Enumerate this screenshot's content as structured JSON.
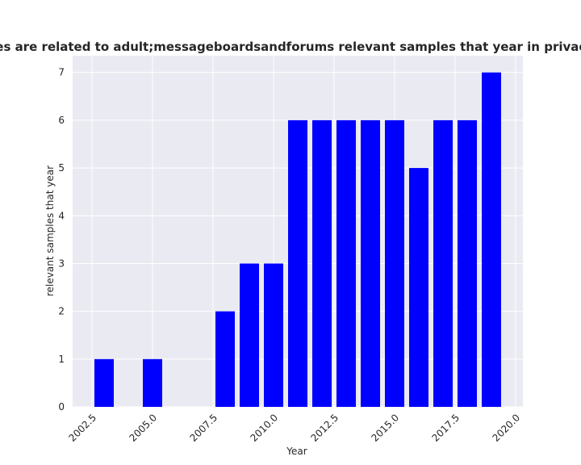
{
  "chart_data": {
    "type": "bar",
    "title": "Categories are related to adult;messageboardsandforums relevant samples that year in privacy policies",
    "xlabel": "Year",
    "ylabel": "relevant samples that year",
    "x": [
      2003,
      2005,
      2008,
      2009,
      2010,
      2011,
      2012,
      2013,
      2014,
      2015,
      2016,
      2017,
      2018,
      2019
    ],
    "values": [
      1,
      1,
      2,
      3,
      3,
      6,
      6,
      6,
      6,
      6,
      5,
      6,
      6,
      7
    ],
    "xlim": [
      2001.7,
      2020.3
    ],
    "ylim": [
      0,
      7.35
    ],
    "xticks": [
      2002.5,
      2005.0,
      2007.5,
      2010.0,
      2012.5,
      2015.0,
      2017.5,
      2020.0
    ],
    "xtick_labels": [
      "2002.5",
      "2005.0",
      "2007.5",
      "2010.0",
      "2012.5",
      "2015.0",
      "2017.5",
      "2020.0"
    ],
    "yticks": [
      0,
      1,
      2,
      3,
      4,
      5,
      6,
      7
    ],
    "ytick_labels": [
      "0",
      "1",
      "2",
      "3",
      "4",
      "5",
      "6",
      "7"
    ],
    "bar_color": "#0000ff",
    "background_color": "#eaeaf2",
    "grid": true
  }
}
